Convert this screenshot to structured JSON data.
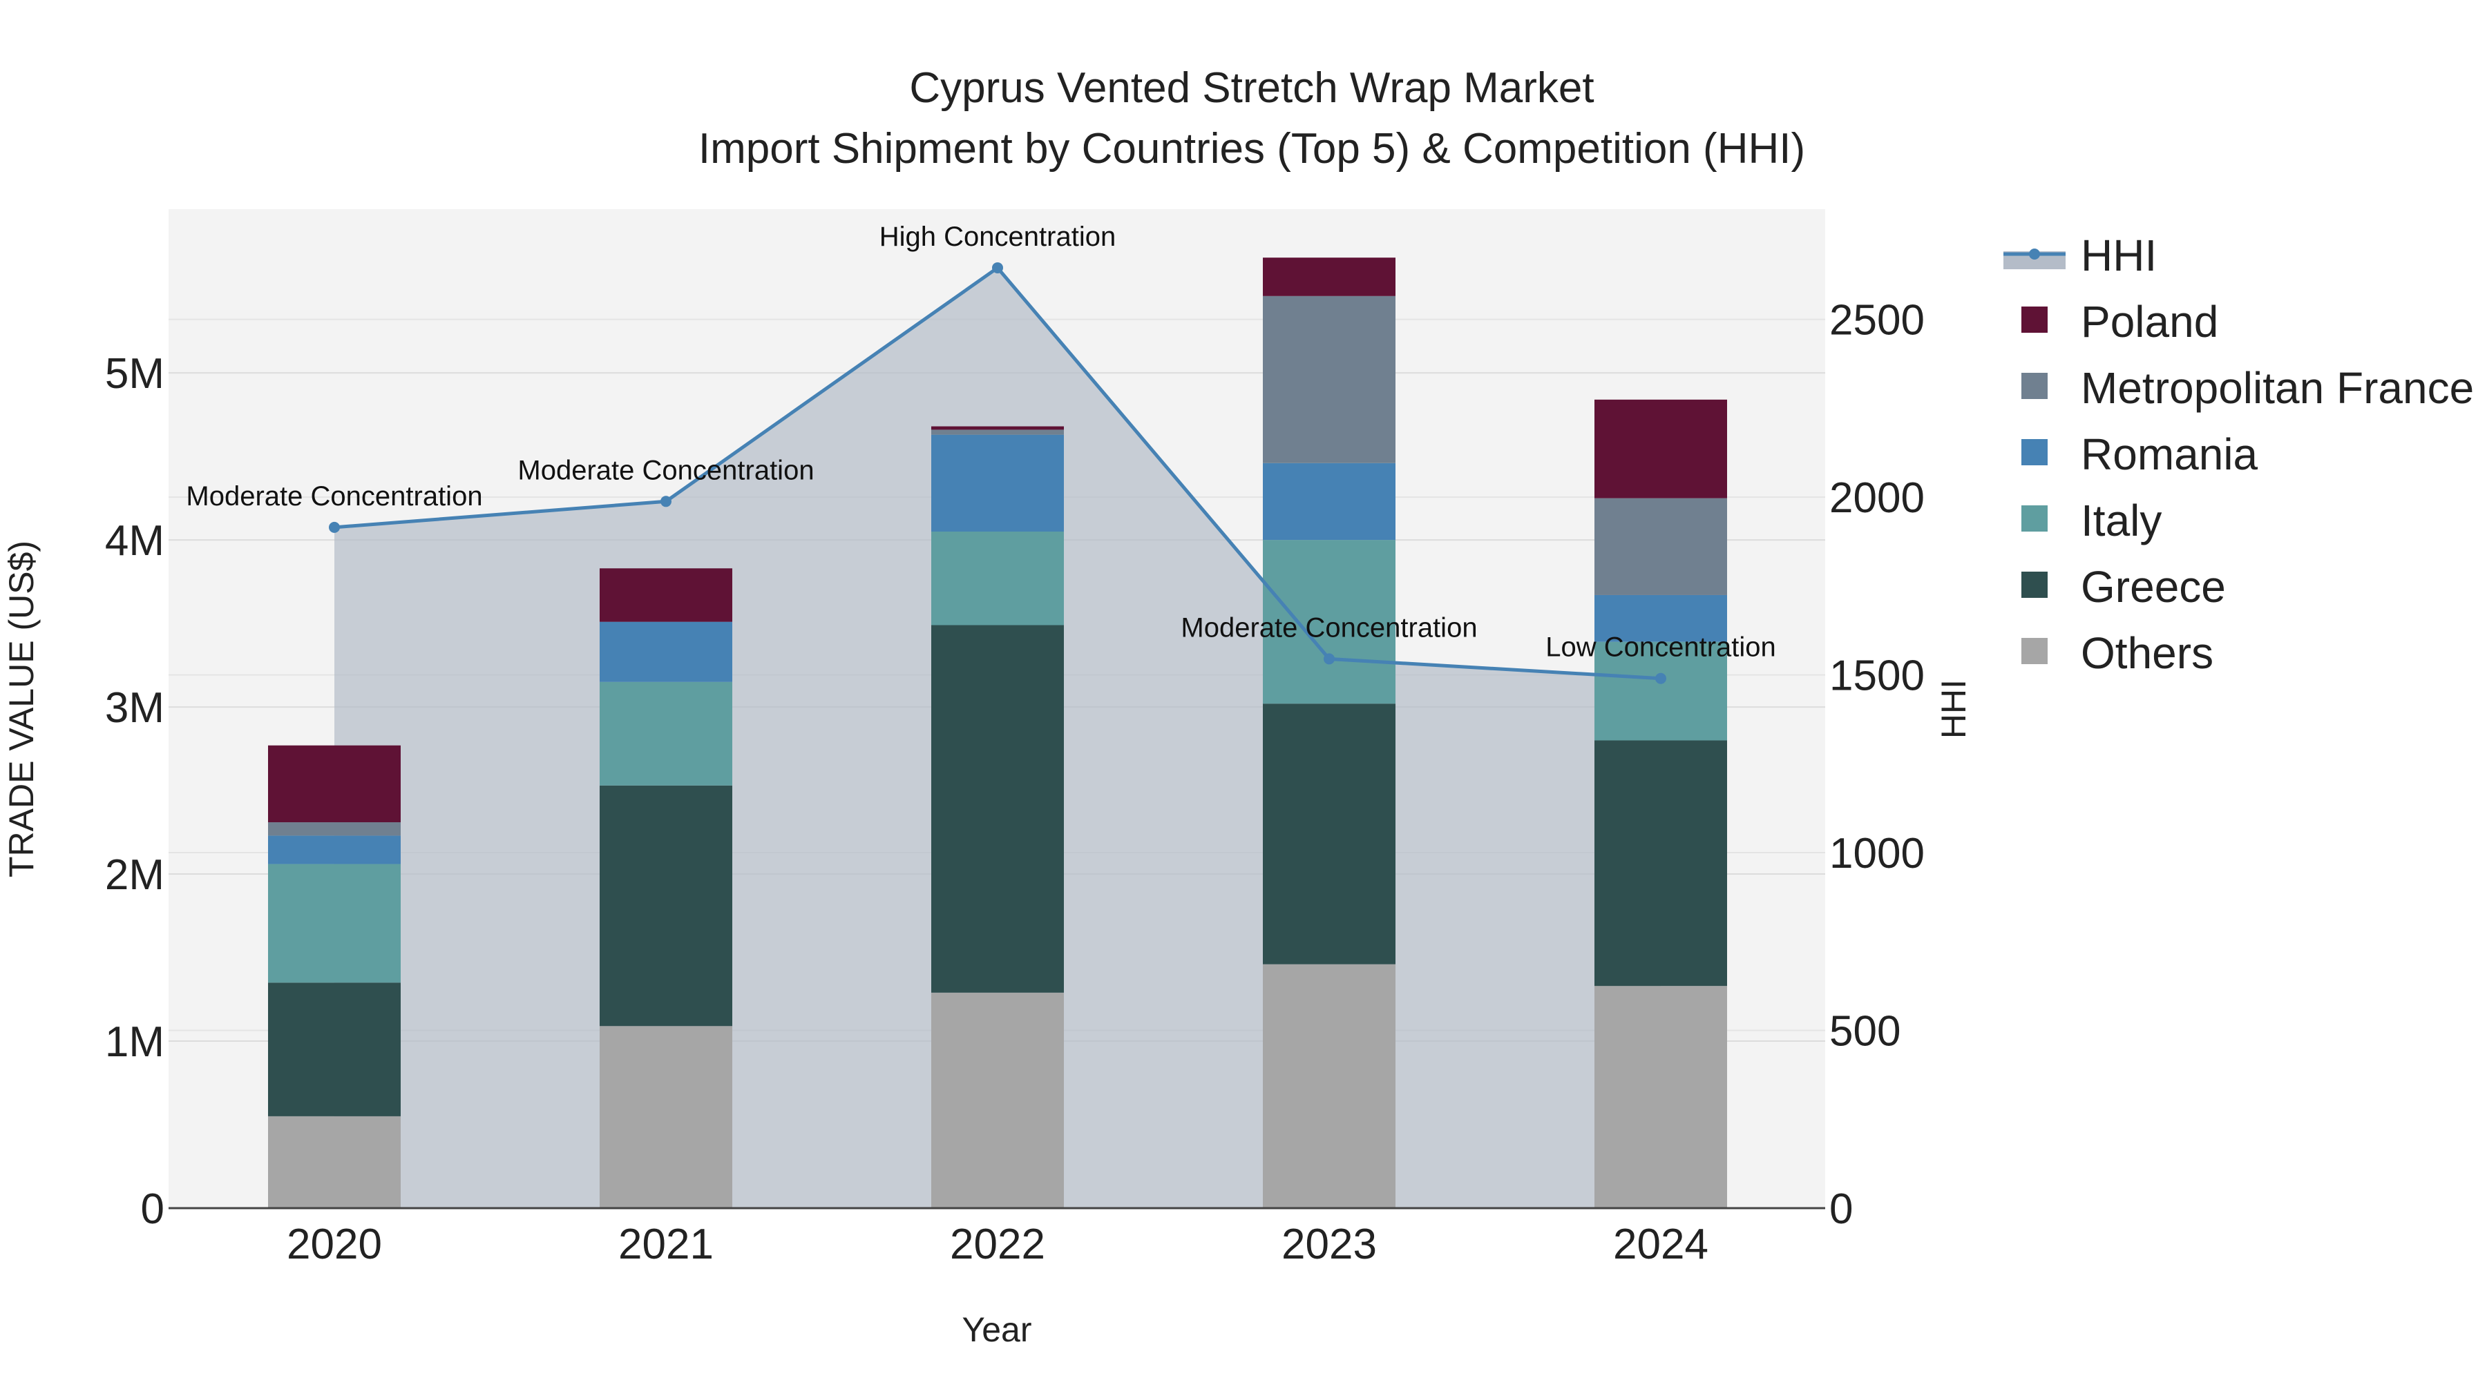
{
  "chart_data": {
    "type": "bar",
    "title": "Cyprus Vented Stretch Wrap Market",
    "subtitle": "Import Shipment by Countries (Top 5) & Competition (HHI)",
    "xlabel": "Year",
    "ylabel": "TRADE VALUE (US$)",
    "y2label": "HHI",
    "categories": [
      "2020",
      "2021",
      "2022",
      "2023",
      "2024"
    ],
    "ylim": [
      0,
      5980000
    ],
    "y2lim": [
      0,
      2810
    ],
    "yticks": [
      0,
      1000000,
      2000000,
      3000000,
      4000000,
      5000000
    ],
    "ytick_labels": [
      "0",
      "1M",
      "2M",
      "3M",
      "4M",
      "5M"
    ],
    "y2ticks": [
      0,
      500,
      1000,
      1500,
      2000,
      2500
    ],
    "y2tick_labels": [
      "0",
      "500",
      "1000",
      "1500",
      "2000",
      "2500"
    ],
    "stack_order": [
      "Others",
      "Greece",
      "Italy",
      "Romania",
      "Metropolitan France",
      "Poland"
    ],
    "series": [
      {
        "name": "Others",
        "color": "#a6a6a6",
        "values": [
          550000,
          1090000,
          1290000,
          1460000,
          1330000
        ]
      },
      {
        "name": "Greece",
        "color": "#2f4f4f",
        "values": [
          800000,
          1440000,
          2200000,
          1560000,
          1470000
        ]
      },
      {
        "name": "Italy",
        "color": "#5f9ea0",
        "values": [
          710000,
          620000,
          560000,
          980000,
          590000
        ]
      },
      {
        "name": "Romania",
        "color": "#4682b4",
        "values": [
          170000,
          360000,
          580000,
          460000,
          280000
        ]
      },
      {
        "name": "Metropolitan France",
        "color": "#708090",
        "values": [
          80000,
          0,
          30000,
          1000000,
          580000
        ]
      },
      {
        "name": "Poland",
        "color": "#5f1235",
        "values": [
          460000,
          320000,
          20000,
          230000,
          590000
        ]
      }
    ],
    "hhi": {
      "name": "HHI",
      "color": "#4682b4",
      "fill_color": "#b4bcc8",
      "values": [
        1915,
        1988,
        2645,
        1545,
        1490
      ],
      "annotations": [
        "Moderate Concentration",
        "Moderate Concentration",
        "High Concentration",
        "Moderate Concentration",
        "Low Concentration"
      ]
    },
    "legend_position": "right",
    "legend": [
      "HHI",
      "Poland",
      "Metropolitan France",
      "Romania",
      "Italy",
      "Greece",
      "Others"
    ]
  }
}
